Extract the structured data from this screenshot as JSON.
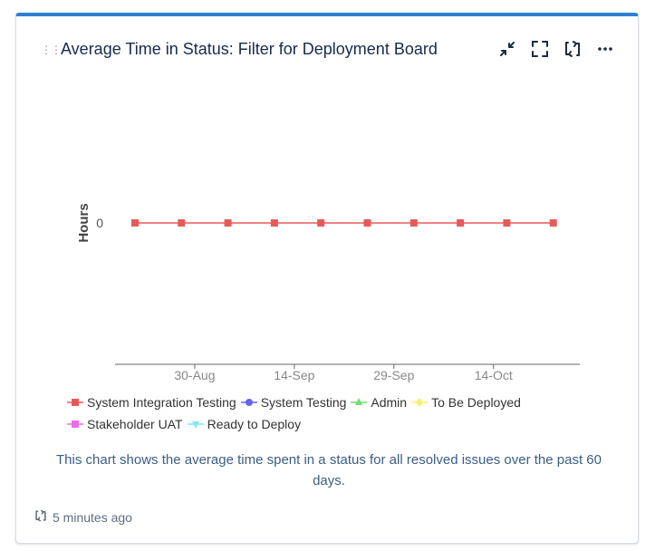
{
  "gadget": {
    "title": "Average Time in Status: Filter for Deployment Board",
    "toolbar": [
      {
        "name": "minimize",
        "icon": "collapse-arrows-icon"
      },
      {
        "name": "fullscreen",
        "icon": "expand-corners-icon"
      },
      {
        "name": "refresh",
        "icon": "refresh-icon"
      },
      {
        "name": "more",
        "icon": "more-horizontal-icon"
      }
    ],
    "description": "This chart shows the average time spent in a status for all resolved issues over the past 60 days.",
    "footer": {
      "updated": "5 minutes ago",
      "icon": "refresh-small-icon"
    }
  },
  "chart_data": {
    "type": "line",
    "title": "",
    "xlabel": "",
    "ylabel": "Hours",
    "y_ticks": [
      "0"
    ],
    "x_ticks": [
      "30-Aug",
      "14-Sep",
      "29-Sep",
      "14-Oct"
    ],
    "grid": false,
    "legend_position": "bottom",
    "series": [
      {
        "name": "System Integration Testing",
        "color": "#e85a5a",
        "marker": "square",
        "points": [
          {
            "x": "2023-08-21",
            "y": 0
          },
          {
            "x": "2023-08-28",
            "y": 0
          },
          {
            "x": "2023-09-04",
            "y": 0
          },
          {
            "x": "2023-09-11",
            "y": 0
          },
          {
            "x": "2023-09-18",
            "y": 0
          },
          {
            "x": "2023-09-25",
            "y": 0
          },
          {
            "x": "2023-10-02",
            "y": 0
          },
          {
            "x": "2023-10-09",
            "y": 0
          },
          {
            "x": "2023-10-16",
            "y": 0
          },
          {
            "x": "2023-10-23",
            "y": 0
          }
        ]
      },
      {
        "name": "System Testing",
        "color": "#6464f0",
        "marker": "circle",
        "points": []
      },
      {
        "name": "Admin",
        "color": "#6fdc6f",
        "marker": "triangle",
        "points": []
      },
      {
        "name": "To Be Deployed",
        "color": "#f7f06a",
        "marker": "diamond",
        "points": []
      },
      {
        "name": "Stakeholder UAT",
        "color": "#e86ce8",
        "marker": "square",
        "points": []
      },
      {
        "name": "Ready to Deploy",
        "color": "#7fe8f0",
        "marker": "triangle-down",
        "points": []
      }
    ]
  }
}
